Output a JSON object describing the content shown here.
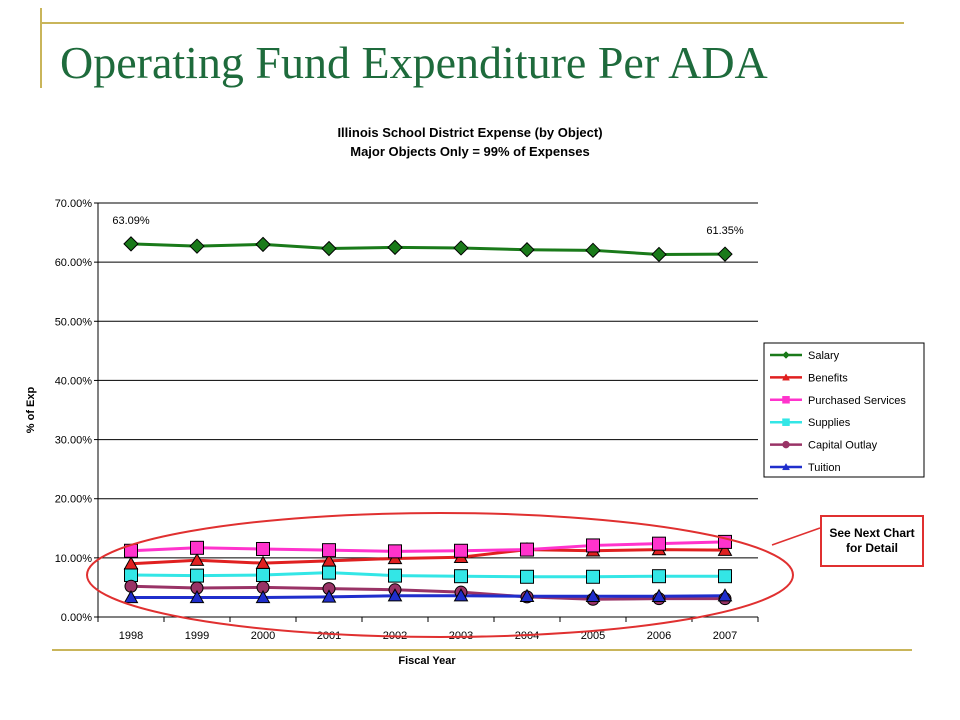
{
  "slide": {
    "title": "Operating Fund Expenditure Per ADA"
  },
  "callout": {
    "text": "See Next Chart for Detail"
  },
  "chart_data": {
    "type": "line",
    "title": "Illinois School District Expense (by Object)",
    "subtitle": "Major Objects Only = 99% of Expenses",
    "xlabel": "Fiscal Year",
    "ylabel": "% of Exp",
    "categories": [
      "1998",
      "1999",
      "2000",
      "2001",
      "2002",
      "2003",
      "2004",
      "2005",
      "2006",
      "2007"
    ],
    "ylim": [
      0,
      70
    ],
    "yticks": [
      "0.00%",
      "10.00%",
      "20.00%",
      "30.00%",
      "40.00%",
      "50.00%",
      "60.00%",
      "70.00%"
    ],
    "grid": "horizontal",
    "legend_position": "right",
    "annotations": [
      {
        "text": "63.09%",
        "series": "Salary",
        "category": "1998"
      },
      {
        "text": "61.35%",
        "series": "Salary",
        "category": "2007"
      }
    ],
    "highlight_ellipse": {
      "color": "#e03030",
      "encloses": [
        "Benefits",
        "Purchased Services",
        "Supplies",
        "Capital Outlay",
        "Tuition"
      ]
    },
    "series": [
      {
        "name": "Salary",
        "color": "#1a7a1a",
        "marker": "diamond",
        "values": [
          63.09,
          62.7,
          63.0,
          62.3,
          62.5,
          62.4,
          62.1,
          62.0,
          61.3,
          61.35
        ]
      },
      {
        "name": "Benefits",
        "color": "#e02020",
        "marker": "triangle",
        "values": [
          9.0,
          9.6,
          9.1,
          9.5,
          9.9,
          10.1,
          11.4,
          11.2,
          11.4,
          11.3
        ]
      },
      {
        "name": "Purchased Services",
        "color": "#ff33cc",
        "marker": "square",
        "values": [
          11.2,
          11.7,
          11.5,
          11.3,
          11.1,
          11.2,
          11.4,
          12.1,
          12.4,
          12.7
        ]
      },
      {
        "name": "Supplies",
        "color": "#33e6e6",
        "marker": "square",
        "values": [
          7.1,
          7.0,
          7.1,
          7.5,
          7.0,
          6.9,
          6.8,
          6.8,
          6.9,
          6.9
        ]
      },
      {
        "name": "Capital Outlay",
        "color": "#993366",
        "marker": "circle",
        "values": [
          5.2,
          4.9,
          5.0,
          4.8,
          4.6,
          4.2,
          3.4,
          3.0,
          3.1,
          3.1
        ]
      },
      {
        "name": "Tuition",
        "color": "#1f2ecc",
        "marker": "triangle",
        "values": [
          3.3,
          3.3,
          3.3,
          3.4,
          3.6,
          3.6,
          3.5,
          3.5,
          3.5,
          3.6
        ]
      }
    ]
  }
}
